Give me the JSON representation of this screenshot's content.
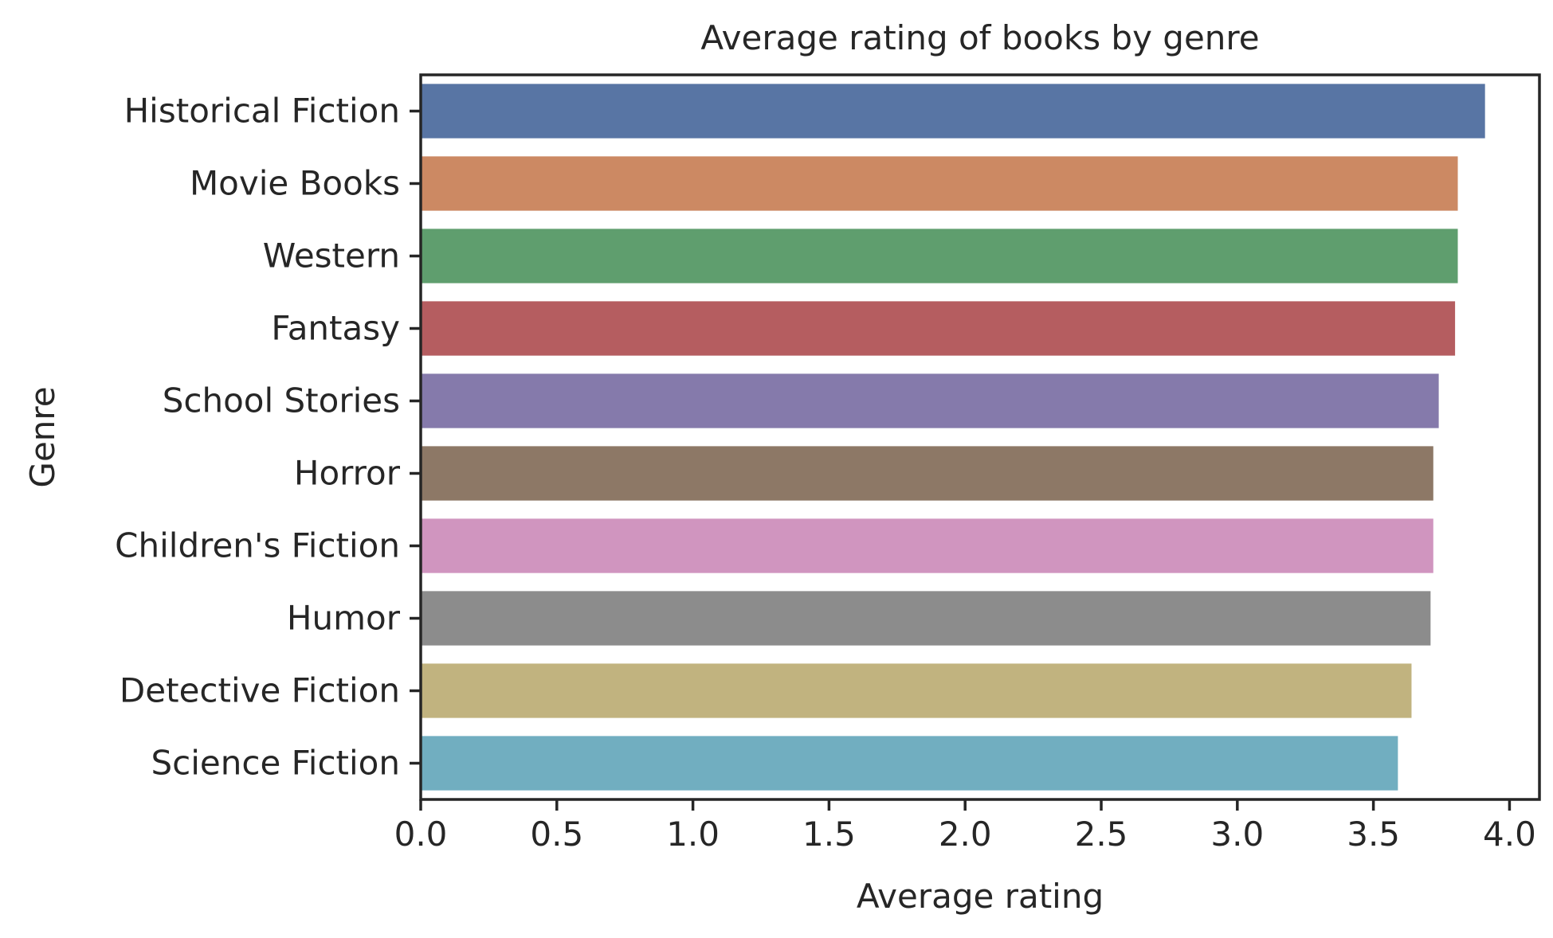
{
  "chart_data": {
    "type": "bar",
    "orientation": "horizontal",
    "title": "Average rating of books by genre",
    "xlabel": "Average rating",
    "ylabel": "Genre",
    "xlim": [
      0,
      4.11
    ],
    "xticks": [
      "0.0",
      "0.5",
      "1.0",
      "1.5",
      "2.0",
      "2.5",
      "3.0",
      "3.5",
      "4.0"
    ],
    "grid": false,
    "categories": [
      "Historical Fiction",
      "Movie Books",
      "Western",
      "Fantasy",
      "School Stories",
      "Horror",
      "Children's Fiction",
      "Humor",
      "Detective Fiction",
      "Science Fiction"
    ],
    "values": [
      3.91,
      3.81,
      3.81,
      3.8,
      3.74,
      3.72,
      3.72,
      3.71,
      3.64,
      3.59
    ],
    "colors": [
      "#5875a4",
      "#cc8963",
      "#5f9e6e",
      "#b55d60",
      "#857aab",
      "#8d7866",
      "#d095bf",
      "#8c8c8c",
      "#c1b37f",
      "#71aec0"
    ]
  }
}
